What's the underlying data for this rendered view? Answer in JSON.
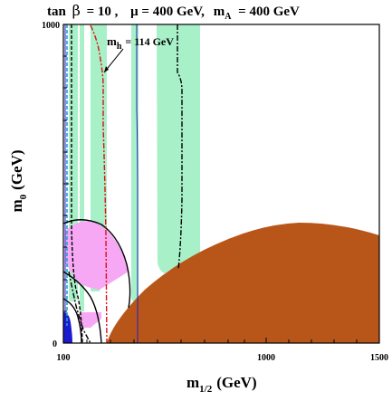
{
  "chart_data": {
    "type": "area",
    "title": {
      "tan": "tan",
      "beta": "β",
      "tanb_value": "= 10 ,",
      "mu": "μ = 400 GeV,",
      "mA_base": "m",
      "mA_sub": "A",
      "mA_value": "= 400 GeV"
    },
    "xlabel": {
      "base": "m",
      "sub": "1/2",
      "unit": "(GeV)"
    },
    "ylabel": {
      "base": "m",
      "sub": "0",
      "unit": "(GeV)"
    },
    "x_ticks": [
      "100",
      "1000",
      "1500"
    ],
    "y_ticks": [
      "0",
      "1000"
    ],
    "xlim": [
      100,
      1500
    ],
    "ylim": [
      0,
      1000
    ],
    "annotation": {
      "base": "m",
      "sub": "h",
      "value": "= 114 GeV"
    },
    "colors": {
      "excluded_region": "#b8561a",
      "green_band": "#a8f0c8",
      "pink_region": "#f6a8f4",
      "blue_region": "#1a1ad0",
      "higgs_line": "#e01010",
      "blue_line": "#2020c0",
      "cyan_line": "#20a0e0"
    },
    "series": [
      {
        "region": "excluded",
        "x": [
          100,
          150,
          200,
          300,
          400,
          600,
          800,
          1000,
          1100,
          1200,
          1300,
          1400,
          1500,
          1500,
          100
        ],
        "y": [
          0,
          0,
          60,
          140,
          200,
          290,
          345,
          375,
          380,
          378,
          370,
          355,
          345,
          0,
          0
        ]
      },
      {
        "region": "green_strip_left",
        "x": [
          104,
          114,
          114,
          104
        ],
        "y": [
          1000,
          1000,
          120,
          120
        ]
      },
      {
        "region": "green_strip_mid",
        "x": [
          120,
          128,
          128,
          120
        ],
        "y": [
          1000,
          1000,
          95,
          95
        ]
      },
      {
        "region": "green_strip_wide",
        "x": [
          130,
          158,
          158,
          130
        ],
        "y": [
          1000,
          1000,
          170,
          170
        ]
      },
      {
        "region": "green_column_a",
        "x": [
          335,
          355,
          355,
          335
        ],
        "y": [
          1000,
          1000,
          110,
          110
        ]
      },
      {
        "region": "green_column_b",
        "x": [
          500,
          625,
          625,
          500
        ],
        "y": [
          1000,
          1000,
          220,
          220
        ]
      },
      {
        "region": "pink_upper",
        "x": [
          105,
          140,
          200,
          260,
          260,
          105
        ],
        "y": [
          300,
          325,
          290,
          200,
          130,
          130
        ]
      },
      {
        "region": "blue_corner",
        "x": [
          100,
          108,
          108,
          100
        ],
        "y": [
          90,
          90,
          0,
          0
        ]
      }
    ]
  }
}
